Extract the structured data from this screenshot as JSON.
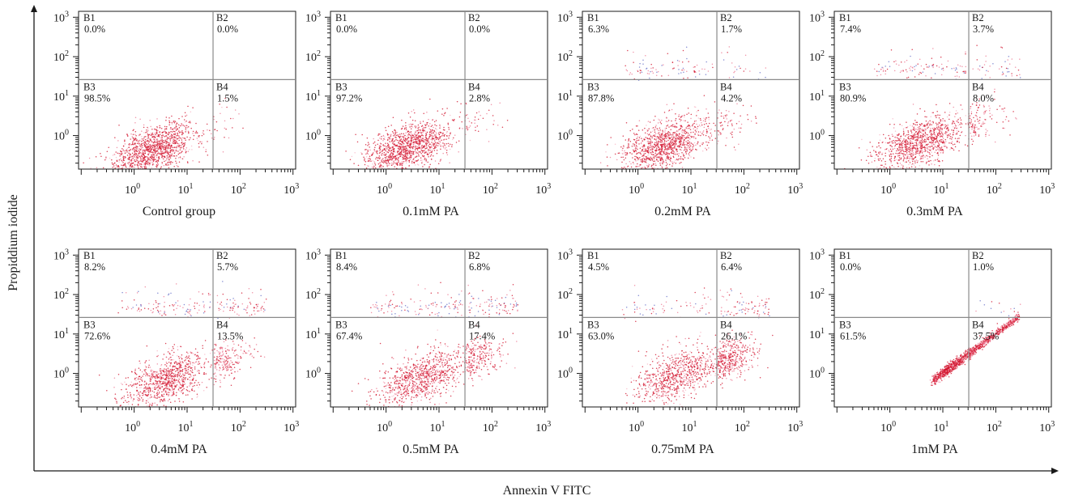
{
  "figure": {
    "x_axis_title": "Annexin V FITC",
    "y_axis_title": "Propiddium iodide"
  },
  "chart_data": [
    {
      "type": "scatter",
      "caption": "Control group",
      "xscale": "log",
      "yscale": "log",
      "xlim": [
        "10^-1",
        "10^3"
      ],
      "ylim": [
        "10^-1",
        "10^3"
      ],
      "x_ticks": [
        "10^0",
        "10^1",
        "10^2",
        "10^3"
      ],
      "y_ticks": [
        "10^0",
        "10^1",
        "10^2",
        "10^3"
      ],
      "gate_lines": true,
      "quadrants": [
        {
          "name": "B1",
          "percent": "0.0%"
        },
        {
          "name": "B2",
          "percent": "0.0%"
        },
        {
          "name": "B3",
          "percent": "98.5%"
        },
        {
          "name": "B4",
          "percent": "1.5%"
        }
      ]
    },
    {
      "type": "scatter",
      "caption": "0.1mM PA",
      "xscale": "log",
      "yscale": "log",
      "xlim": [
        "10^-1",
        "10^3"
      ],
      "ylim": [
        "10^-1",
        "10^3"
      ],
      "x_ticks": [
        "10^0",
        "10^1",
        "10^2",
        "10^3"
      ],
      "y_ticks": [
        "10^0",
        "10^1",
        "10^2",
        "10^3"
      ],
      "gate_lines": true,
      "quadrants": [
        {
          "name": "B1",
          "percent": "0.0%"
        },
        {
          "name": "B2",
          "percent": "0.0%"
        },
        {
          "name": "B3",
          "percent": "97.2%"
        },
        {
          "name": "B4",
          "percent": "2.8%"
        }
      ]
    },
    {
      "type": "scatter",
      "caption": "0.2mM PA",
      "xscale": "log",
      "yscale": "log",
      "xlim": [
        "10^-1",
        "10^3"
      ],
      "ylim": [
        "10^-1",
        "10^3"
      ],
      "x_ticks": [
        "10^0",
        "10^1",
        "10^2",
        "10^3"
      ],
      "y_ticks": [
        "10^0",
        "10^1",
        "10^2",
        "10^3"
      ],
      "gate_lines": true,
      "quadrants": [
        {
          "name": "B1",
          "percent": "6.3%"
        },
        {
          "name": "B2",
          "percent": "1.7%"
        },
        {
          "name": "B3",
          "percent": "87.8%"
        },
        {
          "name": "B4",
          "percent": "4.2%"
        }
      ]
    },
    {
      "type": "scatter",
      "caption": "0.3mM PA",
      "xscale": "log",
      "yscale": "log",
      "xlim": [
        "10^-1",
        "10^3"
      ],
      "ylim": [
        "10^-1",
        "10^3"
      ],
      "x_ticks": [
        "10^0",
        "10^1",
        "10^2",
        "10^3"
      ],
      "y_ticks": [
        "10^0",
        "10^1",
        "10^2",
        "10^3"
      ],
      "gate_lines": true,
      "quadrants": [
        {
          "name": "B1",
          "percent": "7.4%"
        },
        {
          "name": "B2",
          "percent": "3.7%"
        },
        {
          "name": "B3",
          "percent": "80.9%"
        },
        {
          "name": "B4",
          "percent": "8.0%"
        }
      ]
    },
    {
      "type": "scatter",
      "caption": "0.4mM PA",
      "xscale": "log",
      "yscale": "log",
      "xlim": [
        "10^-1",
        "10^3"
      ],
      "ylim": [
        "10^-1",
        "10^3"
      ],
      "x_ticks": [
        "10^0",
        "10^1",
        "10^2",
        "10^3"
      ],
      "y_ticks": [
        "10^0",
        "10^1",
        "10^2",
        "10^3"
      ],
      "gate_lines": true,
      "quadrants": [
        {
          "name": "B1",
          "percent": "8.2%"
        },
        {
          "name": "B2",
          "percent": "5.7%"
        },
        {
          "name": "B3",
          "percent": "72.6%"
        },
        {
          "name": "B4",
          "percent": "13.5%"
        }
      ]
    },
    {
      "type": "scatter",
      "caption": "0.5mM PA",
      "xscale": "log",
      "yscale": "log",
      "xlim": [
        "10^-1",
        "10^3"
      ],
      "ylim": [
        "10^-1",
        "10^3"
      ],
      "x_ticks": [
        "10^0",
        "10^1",
        "10^2",
        "10^3"
      ],
      "y_ticks": [
        "10^0",
        "10^1",
        "10^2",
        "10^3"
      ],
      "gate_lines": true,
      "quadrants": [
        {
          "name": "B1",
          "percent": "8.4%"
        },
        {
          "name": "B2",
          "percent": "6.8%"
        },
        {
          "name": "B3",
          "percent": "67.4%"
        },
        {
          "name": "B4",
          "percent": "17.4%"
        }
      ]
    },
    {
      "type": "scatter",
      "caption": "0.75mM PA",
      "xscale": "log",
      "yscale": "log",
      "xlim": [
        "10^-1",
        "10^3"
      ],
      "ylim": [
        "10^-1",
        "10^3"
      ],
      "x_ticks": [
        "10^0",
        "10^1",
        "10^2",
        "10^3"
      ],
      "y_ticks": [
        "10^0",
        "10^1",
        "10^2",
        "10^3"
      ],
      "gate_lines": true,
      "quadrants": [
        {
          "name": "B1",
          "percent": "4.5%"
        },
        {
          "name": "B2",
          "percent": "6.4%"
        },
        {
          "name": "B3",
          "percent": "63.0%"
        },
        {
          "name": "B4",
          "percent": "26.1%"
        }
      ]
    },
    {
      "type": "scatter",
      "caption": "1mM PA",
      "xscale": "log",
      "yscale": "log",
      "xlim": [
        "10^-1",
        "10^3"
      ],
      "ylim": [
        "10^-1",
        "10^3"
      ],
      "x_ticks": [
        "10^0",
        "10^1",
        "10^2",
        "10^3"
      ],
      "y_ticks": [
        "10^0",
        "10^1",
        "10^2",
        "10^3"
      ],
      "gate_lines": true,
      "quadrants": [
        {
          "name": "B1",
          "percent": "0.0%"
        },
        {
          "name": "B2",
          "percent": "1.0%"
        },
        {
          "name": "B3",
          "percent": "61.5%"
        },
        {
          "name": "B4",
          "percent": "37.5%"
        }
      ]
    }
  ],
  "colors": {
    "dots_primary": "#d2142d",
    "dots_secondary": "#ee7a93",
    "dots_light": "#f7b6c6",
    "dots_blue": "#6670c8",
    "gate": "#8a8a8a",
    "axis": "#1a1a1a"
  }
}
